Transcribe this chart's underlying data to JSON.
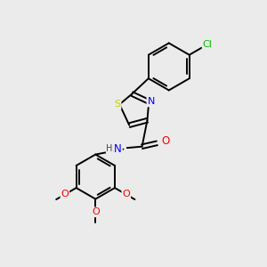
{
  "background_color": "#ebebeb",
  "bond_color": "#000000",
  "atom_colors": {
    "S": "#cccc00",
    "N": "#0000ff",
    "O": "#ff0000",
    "Cl": "#00bb00",
    "C": "#000000",
    "H": "#444444"
  },
  "figsize": [
    3.0,
    3.0
  ],
  "dpi": 100
}
